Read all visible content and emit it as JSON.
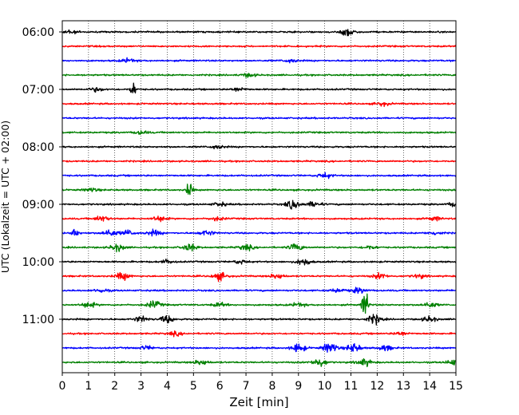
{
  "chart_data": {
    "type": "line",
    "title": "",
    "xlabel": "Zeit  [min]",
    "ylabel": "UTC (Lokalzeit = UTC + 02:00)",
    "xlim": [
      0,
      15
    ],
    "x_ticks": [
      "0",
      "1",
      "2",
      "3",
      "4",
      "5",
      "6",
      "7",
      "8",
      "9",
      "10",
      "11",
      "12",
      "13",
      "14",
      "15"
    ],
    "y_ticks": [
      "06:00",
      "07:00",
      "08:00",
      "09:00",
      "10:00",
      "11:00"
    ],
    "grid": "vertical dotted",
    "trace_interval_min": 15,
    "start_time": "06:00",
    "colors": [
      "#000000",
      "#ff0000",
      "#0000ff",
      "#008000"
    ],
    "traces": [
      {
        "time": "06:00",
        "color": "#000000",
        "events": [
          [
            0.3,
            2
          ],
          [
            10.9,
            5
          ]
        ]
      },
      {
        "time": "06:15",
        "color": "#ff0000",
        "events": []
      },
      {
        "time": "06:30",
        "color": "#0000ff",
        "events": [
          [
            2.5,
            2
          ],
          [
            8.7,
            2
          ]
        ]
      },
      {
        "time": "06:45",
        "color": "#008000",
        "events": [
          [
            7.1,
            2
          ]
        ]
      },
      {
        "time": "07:00",
        "color": "#000000",
        "events": [
          [
            2.7,
            8
          ],
          [
            1.3,
            2
          ],
          [
            6.7,
            2
          ]
        ]
      },
      {
        "time": "07:15",
        "color": "#ff0000",
        "events": [
          [
            12.2,
            2
          ]
        ]
      },
      {
        "time": "07:30",
        "color": "#0000ff",
        "events": []
      },
      {
        "time": "07:45",
        "color": "#008000",
        "events": [
          [
            3.0,
            2
          ]
        ]
      },
      {
        "time": "08:00",
        "color": "#000000",
        "events": [
          [
            5.9,
            2
          ]
        ]
      },
      {
        "time": "08:15",
        "color": "#ff0000",
        "events": []
      },
      {
        "time": "08:30",
        "color": "#0000ff",
        "events": [
          [
            10.0,
            3
          ]
        ]
      },
      {
        "time": "08:45",
        "color": "#008000",
        "events": [
          [
            4.85,
            9
          ],
          [
            1.1,
            2
          ]
        ]
      },
      {
        "time": "09:00",
        "color": "#000000",
        "events": [
          [
            8.8,
            5
          ],
          [
            9.6,
            3
          ],
          [
            6.0,
            2
          ],
          [
            15.0,
            3
          ]
        ]
      },
      {
        "time": "09:15",
        "color": "#ff0000",
        "events": [
          [
            1.5,
            3
          ],
          [
            3.7,
            3
          ],
          [
            5.9,
            2
          ],
          [
            14.2,
            2
          ]
        ]
      },
      {
        "time": "09:30",
        "color": "#0000ff",
        "events": [
          [
            0.5,
            7
          ],
          [
            1.8,
            4
          ],
          [
            2.5,
            3
          ],
          [
            3.5,
            3
          ],
          [
            5.5,
            3
          ],
          [
            14.2,
            2
          ]
        ]
      },
      {
        "time": "09:45",
        "color": "#008000",
        "events": [
          [
            2.1,
            4
          ],
          [
            4.85,
            4
          ],
          [
            7.0,
            3
          ],
          [
            8.9,
            4
          ],
          [
            11.7,
            2
          ]
        ]
      },
      {
        "time": "10:00",
        "color": "#000000",
        "events": [
          [
            9.2,
            4
          ],
          [
            4.0,
            2
          ],
          [
            6.8,
            2
          ]
        ]
      },
      {
        "time": "10:15",
        "color": "#ff0000",
        "events": [
          [
            2.3,
            4
          ],
          [
            6.0,
            4
          ],
          [
            8.2,
            3
          ],
          [
            12.1,
            3
          ],
          [
            13.6,
            2
          ]
        ]
      },
      {
        "time": "10:30",
        "color": "#0000ff",
        "events": [
          [
            1.5,
            2
          ],
          [
            10.5,
            2
          ],
          [
            11.3,
            3
          ]
        ]
      },
      {
        "time": "10:45",
        "color": "#008000",
        "events": [
          [
            11.55,
            18
          ],
          [
            1.0,
            3
          ],
          [
            3.5,
            4
          ],
          [
            6.0,
            2
          ],
          [
            9.0,
            2
          ],
          [
            14.0,
            3
          ]
        ]
      },
      {
        "time": "11:00",
        "color": "#000000",
        "events": [
          [
            3.0,
            3
          ],
          [
            4.0,
            4
          ],
          [
            11.9,
            5
          ],
          [
            14.0,
            3
          ]
        ]
      },
      {
        "time": "11:15",
        "color": "#ff0000",
        "events": [
          [
            4.3,
            2
          ],
          [
            12.9,
            2
          ]
        ]
      },
      {
        "time": "11:30",
        "color": "#0000ff",
        "events": [
          [
            9.0,
            5
          ],
          [
            10.2,
            6
          ],
          [
            11.1,
            5
          ],
          [
            12.3,
            3
          ],
          [
            3.2,
            2
          ]
        ]
      },
      {
        "time": "11:45",
        "color": "#008000",
        "events": [
          [
            5.3,
            3
          ],
          [
            9.8,
            5
          ],
          [
            11.5,
            4
          ],
          [
            14.9,
            3
          ]
        ]
      }
    ]
  }
}
